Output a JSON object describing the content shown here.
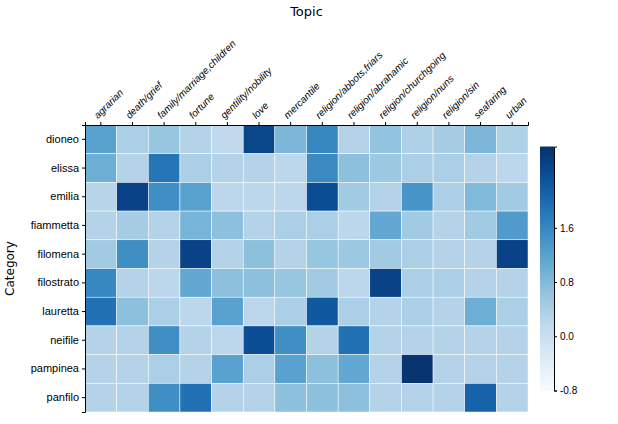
{
  "chart_data": {
    "type": "heatmap",
    "title": "Topic",
    "ylabel": "Category",
    "color": "Blues",
    "categories": [
      "dioneo",
      "elissa",
      "emilia",
      "fiammetta",
      "filomena",
      "filostrato",
      "lauretta",
      "neifile",
      "pampinea",
      "panfilo"
    ],
    "x_categories": [
      "agrarian",
      "death/grief",
      "family/marriage,children",
      "fortune",
      "gentility/nobility",
      "love",
      "mercantile",
      "religion/abbots,friars",
      "religion/abrahamic",
      "religion/churchgoing",
      "religion/nuns",
      "religion/sin",
      "seafaring",
      "urban"
    ],
    "values": [
      [
        1.2,
        0.4,
        0.6,
        0.3,
        0.15,
        2.5,
        0.85,
        1.6,
        0.3,
        0.65,
        0.35,
        0.45,
        0.85,
        0.35
      ],
      [
        1.0,
        0.3,
        1.85,
        0.4,
        0.3,
        0.3,
        0.2,
        1.55,
        0.7,
        0.55,
        0.4,
        0.4,
        0.3,
        0.2
      ],
      [
        0.25,
        2.55,
        1.5,
        1.2,
        0.2,
        0.2,
        0.2,
        2.4,
        0.5,
        0.3,
        1.4,
        0.4,
        0.8,
        0.5
      ],
      [
        0.3,
        0.45,
        0.3,
        0.9,
        0.7,
        0.3,
        0.4,
        0.4,
        0.2,
        1.1,
        0.5,
        0.3,
        0.5,
        1.3
      ],
      [
        0.5,
        1.5,
        0.3,
        2.55,
        0.3,
        0.7,
        0.3,
        0.6,
        0.55,
        0.5,
        0.4,
        0.3,
        0.3,
        2.55
      ],
      [
        1.6,
        0.3,
        0.2,
        1.1,
        0.7,
        0.7,
        0.6,
        0.5,
        0.2,
        2.55,
        0.4,
        0.4,
        0.3,
        0.3
      ],
      [
        1.9,
        0.7,
        0.4,
        0.2,
        1.2,
        0.2,
        0.4,
        2.25,
        0.4,
        0.3,
        0.4,
        0.3,
        1.0,
        0.4
      ],
      [
        0.3,
        0.3,
        1.5,
        0.3,
        0.2,
        2.4,
        1.5,
        0.3,
        1.9,
        0.3,
        0.3,
        0.3,
        0.3,
        0.3
      ],
      [
        0.3,
        0.3,
        0.4,
        0.3,
        1.2,
        0.4,
        1.2,
        0.7,
        1.1,
        0.3,
        2.75,
        0.3,
        0.3,
        0.3
      ],
      [
        0.3,
        0.3,
        1.5,
        1.9,
        0.3,
        0.3,
        0.7,
        0.7,
        0.7,
        0.3,
        0.3,
        0.3,
        2.1,
        0.3
      ]
    ],
    "colorbar_range": [
      -0.8,
      2.8
    ],
    "colorbar_ticks": [
      1.6,
      0.8,
      {
        "value": 0.0,
        "label": "0.0"
      },
      -0.8
    ]
  }
}
